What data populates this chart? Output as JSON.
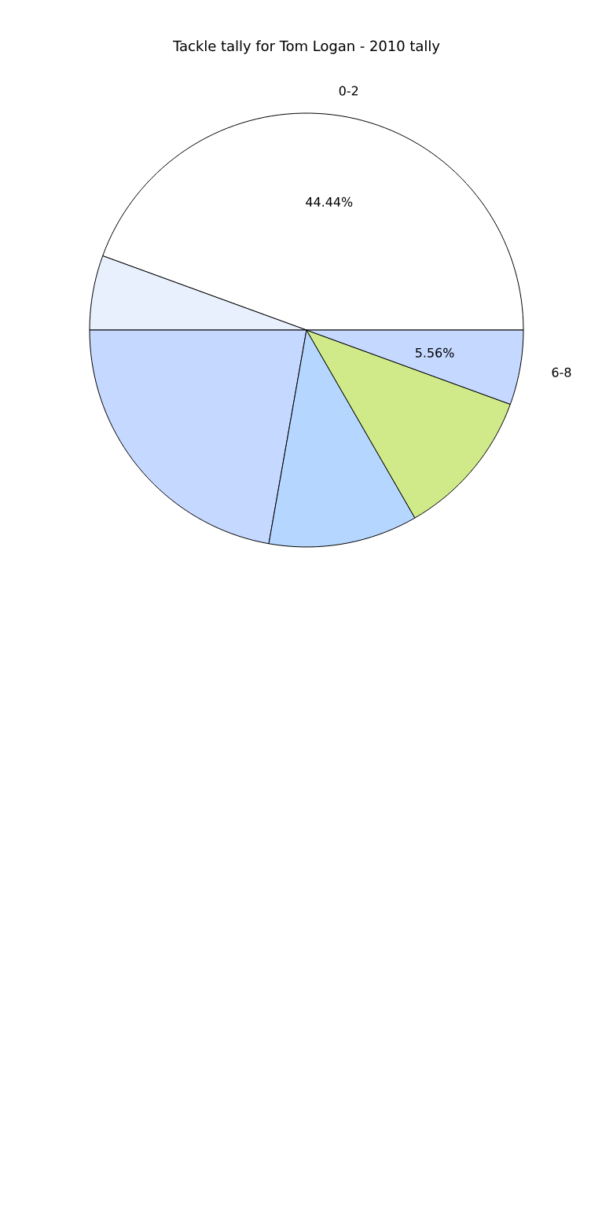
{
  "chart_data": {
    "type": "pie",
    "title": "Tackle tally for Tom Logan - 2010 tally",
    "categories": [
      "0-2",
      null,
      null,
      null,
      null,
      "6-8"
    ],
    "values": [
      44.44,
      5.56,
      22.22,
      11.11,
      11.11,
      5.56
    ],
    "colors": [
      "#ffffff",
      "#e8f0fe",
      "#c5d8ff",
      "#b5d6ff",
      "#d0ea8a",
      "#c5d8ff"
    ],
    "value_labels": [
      "44.44%",
      null,
      null,
      null,
      null,
      "5.56%"
    ]
  }
}
